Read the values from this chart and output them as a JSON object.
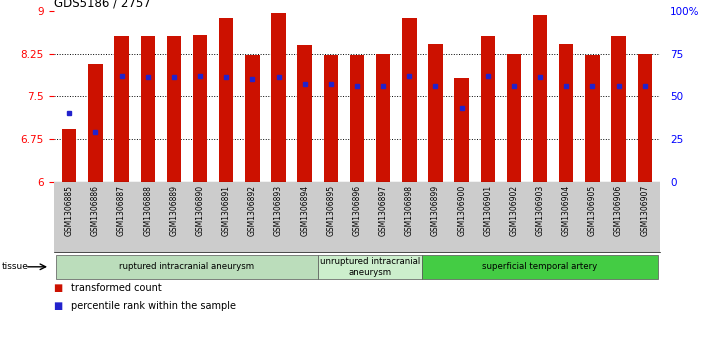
{
  "title": "GDS5186 / 2757",
  "samples": [
    "GSM1306885",
    "GSM1306886",
    "GSM1306887",
    "GSM1306888",
    "GSM1306889",
    "GSM1306890",
    "GSM1306891",
    "GSM1306892",
    "GSM1306893",
    "GSM1306894",
    "GSM1306895",
    "GSM1306896",
    "GSM1306897",
    "GSM1306898",
    "GSM1306899",
    "GSM1306900",
    "GSM1306901",
    "GSM1306902",
    "GSM1306903",
    "GSM1306904",
    "GSM1306905",
    "GSM1306906",
    "GSM1306907"
  ],
  "bar_heights": [
    6.93,
    8.07,
    8.55,
    8.55,
    8.55,
    8.58,
    8.87,
    8.22,
    8.97,
    8.4,
    8.22,
    8.22,
    8.25,
    8.87,
    8.42,
    7.82,
    8.55,
    8.25,
    8.93,
    8.42,
    8.22,
    8.55,
    8.25
  ],
  "percentile_ranks": [
    40,
    29,
    62,
    61,
    61,
    62,
    61,
    60,
    61,
    57,
    57,
    56,
    56,
    62,
    56,
    43,
    62,
    56,
    61,
    56,
    56,
    56,
    56
  ],
  "ylim_left": [
    6,
    9
  ],
  "ylim_right": [
    0,
    100
  ],
  "yticks_left": [
    6,
    6.75,
    7.5,
    8.25,
    9
  ],
  "yticks_right": [
    0,
    25,
    50,
    75,
    100
  ],
  "ytick_labels_right": [
    "0",
    "25",
    "50",
    "75",
    "100%"
  ],
  "bar_color": "#cc1100",
  "marker_color": "#2222cc",
  "bar_bottom": 6,
  "groups": [
    {
      "label": "ruptured intracranial aneurysm",
      "start": 0,
      "end": 10,
      "color": "#bbddbb"
    },
    {
      "label": "unruptured intracranial\naneurysm",
      "start": 10,
      "end": 14,
      "color": "#cceecc"
    },
    {
      "label": "superficial temporal artery",
      "start": 14,
      "end": 23,
      "color": "#44cc44"
    }
  ],
  "tissue_label": "tissue",
  "legend_items": [
    {
      "color": "#cc1100",
      "label": "transformed count"
    },
    {
      "color": "#2222cc",
      "label": "percentile rank within the sample"
    }
  ],
  "bg_color": "#cccccc",
  "plot_bg": "#ffffff"
}
